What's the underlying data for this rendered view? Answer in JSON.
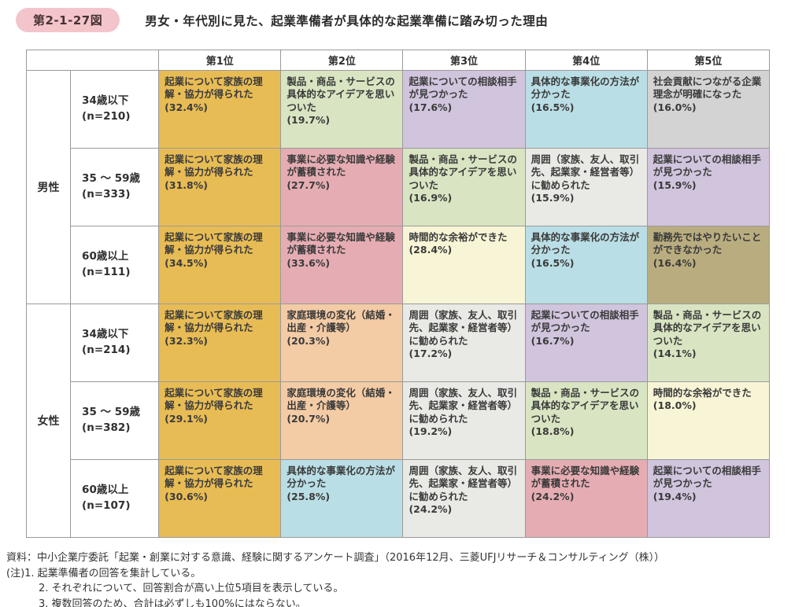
{
  "header": {
    "fig_label": "第2-1-27図",
    "title": "男女・年代別に見た、起業準備者が具体的な起業準備に踏み切った理由"
  },
  "accent_colors": {
    "badge_bg": "#f3c5ca",
    "badge_text": "#483232",
    "table_border": "#9a9a9a"
  },
  "table": {
    "rank_headers": [
      "第1位",
      "第2位",
      "第3位",
      "第4位",
      "第5位"
    ],
    "cell_colors": {
      "family": "#e8bc55",
      "idea": "#d9e5c2",
      "consult": "#d1c4dd",
      "method": "#badee5",
      "social": "#d3d3d3",
      "knowledge": "#e5adb3",
      "around": "#e9e9e5",
      "time": "#f8f5d6",
      "workplace": "#b9ad80",
      "homeenv": "#f3cba5"
    },
    "groups": [
      {
        "gender": "男性",
        "rows": [
          {
            "age": "34歳以下",
            "n": "(n=210)",
            "cells": [
              {
                "text": "起業について家族の理解・協力が得られた",
                "pct": "(32.4%)",
                "color": "family"
              },
              {
                "text": "製品・商品・サービスの具体的なアイデアを思いついた",
                "pct": "(19.7%)",
                "color": "idea"
              },
              {
                "text": "起業についての相談相手が見つかった",
                "pct": "(17.6%)",
                "color": "consult"
              },
              {
                "text": "具体的な事業化の方法が分かった",
                "pct": "(16.5%)",
                "color": "method"
              },
              {
                "text": "社会貢献につながる企業理念が明確になった",
                "pct": "(16.0%)",
                "color": "social"
              }
            ]
          },
          {
            "age": "35 ～ 59歳",
            "n": "(n=333)",
            "cells": [
              {
                "text": "起業について家族の理解・協力が得られた",
                "pct": "(31.8%)",
                "color": "family"
              },
              {
                "text": "事業に必要な知識や経験が蓄積された",
                "pct": "(27.7%)",
                "color": "knowledge"
              },
              {
                "text": "製品・商品・サービスの具体的なアイデアを思いついた",
                "pct": "(16.9%)",
                "color": "idea"
              },
              {
                "text": "周囲（家族、友人、取引先、起業家・経営者等）に勧められた",
                "pct": "(15.9%)",
                "color": "around"
              },
              {
                "text": "起業についての相談相手が見つかった",
                "pct": "(15.9%)",
                "color": "consult"
              }
            ]
          },
          {
            "age": "60歳以上",
            "n": "(n=111)",
            "cells": [
              {
                "text": "起業について家族の理解・協力が得られた",
                "pct": "(34.5%)",
                "color": "family"
              },
              {
                "text": "事業に必要な知識や経験が蓄積された",
                "pct": "(33.6%)",
                "color": "knowledge"
              },
              {
                "text": "時間的な余裕ができた",
                "pct": "(28.4%)",
                "color": "time"
              },
              {
                "text": "具体的な事業化の方法が分かった",
                "pct": "(16.5%)",
                "color": "method"
              },
              {
                "text": "勤務先ではやりたいことができなかった",
                "pct": "(16.4%)",
                "color": "workplace"
              }
            ]
          }
        ]
      },
      {
        "gender": "女性",
        "rows": [
          {
            "age": "34歳以下",
            "n": "(n=214)",
            "cells": [
              {
                "text": "起業について家族の理解・協力が得られた",
                "pct": "(32.3%)",
                "color": "family"
              },
              {
                "text": "家庭環境の変化（結婚・出産・介護等）",
                "pct": "(20.3%)",
                "color": "homeenv"
              },
              {
                "text": "周囲（家族、友人、取引先、起業家・経営者等）に勧められた",
                "pct": "(17.2%)",
                "color": "around"
              },
              {
                "text": "起業についての相談相手が見つかった",
                "pct": "(16.7%)",
                "color": "consult"
              },
              {
                "text": "製品・商品・サービスの具体的なアイデアを思いついた",
                "pct": "(14.1%)",
                "color": "idea"
              }
            ]
          },
          {
            "age": "35 ～ 59歳",
            "n": "(n=382)",
            "cells": [
              {
                "text": "起業について家族の理解・協力が得られた",
                "pct": "(29.1%)",
                "color": "family"
              },
              {
                "text": "家庭環境の変化（結婚・出産・介護等）",
                "pct": "(20.7%)",
                "color": "homeenv"
              },
              {
                "text": "周囲（家族、友人、取引先、起業家・経営者等）に勧められた",
                "pct": "(19.2%)",
                "color": "around"
              },
              {
                "text": "製品・商品・サービスの具体的なアイデアを思いついた",
                "pct": "(18.8%)",
                "color": "idea"
              },
              {
                "text": "時間的な余裕ができた",
                "pct": "(18.0%)",
                "color": "time"
              }
            ]
          },
          {
            "age": "60歳以上",
            "n": "(n=107)",
            "cells": [
              {
                "text": "起業について家族の理解・協力が得られた",
                "pct": "(30.6%)",
                "color": "family"
              },
              {
                "text": "具体的な事業化の方法が分かった",
                "pct": "(25.8%)",
                "color": "method"
              },
              {
                "text": "周囲（家族、友人、取引先、起業家・経営者等）に勧められた",
                "pct": "(24.2%)",
                "color": "around"
              },
              {
                "text": "事業に必要な知識や経験が蓄積された",
                "pct": "(24.2%)",
                "color": "knowledge"
              },
              {
                "text": "起業についての相談相手が見つかった",
                "pct": "(19.4%)",
                "color": "consult"
              }
            ]
          }
        ]
      }
    ]
  },
  "footer": {
    "source": "資料：中小企業庁委託「起業・創業に対する意識、経験に関するアンケート調査」（2016年12月、三菱UFJリサーチ＆コンサルティング（株））",
    "note1": "(注)1. 起業準備者の回答を集計している。",
    "note2": "2. それぞれについて、回答割合が高い上位5項目を表示している。",
    "note3": "3. 複数回答のため、合計は必ずしも100%にはならない。"
  }
}
